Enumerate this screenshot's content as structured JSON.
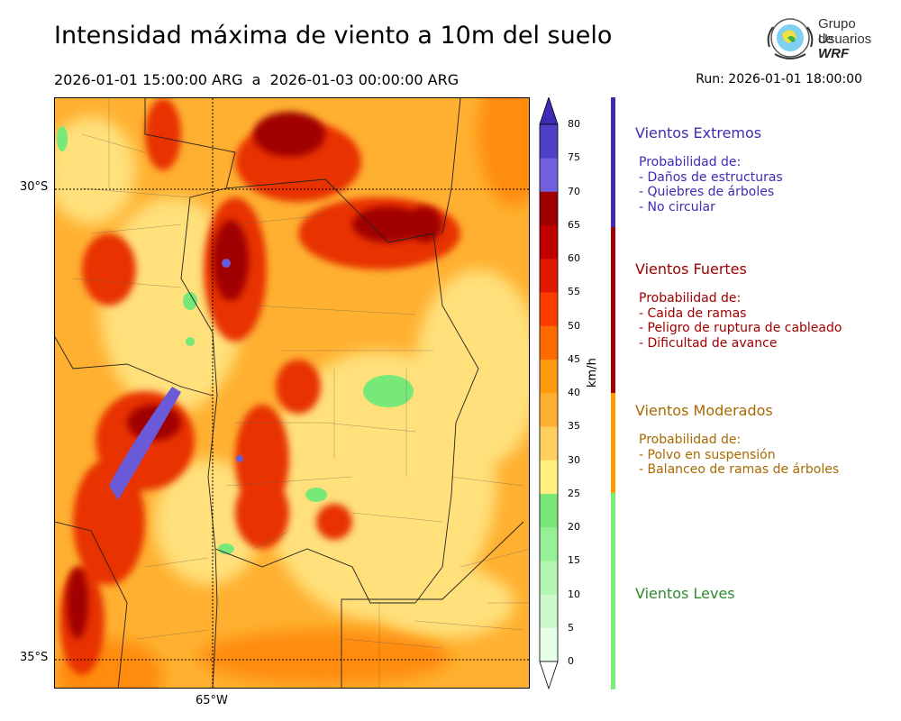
{
  "title": "Intensidad máxima de viento a 10m del suelo",
  "period": "2026-01-01 15:00:00 ARG  a  2026-01-03 00:00:00 ARG",
  "run": "Run: 2026-01-01 18:00:00",
  "logo": {
    "line1": "Grupo de",
    "line2": "Usuarios",
    "line3": "WRF"
  },
  "map": {
    "lat_labels": [
      "30°S",
      "35°S"
    ],
    "lon_labels": [
      "65°W"
    ]
  },
  "colorbar": {
    "unit": "km/h",
    "ticks": [
      "0",
      "5",
      "10",
      "15",
      "20",
      "25",
      "30",
      "35",
      "40",
      "45",
      "50",
      "55",
      "60",
      "65",
      "70",
      "75",
      "80"
    ],
    "colors": [
      "#e6ffe6",
      "#ccfacc",
      "#b3f5b3",
      "#96f096",
      "#78e878",
      "#fff080",
      "#ffd060",
      "#ffb030",
      "#ff9a10",
      "#ff6a00",
      "#ff3c00",
      "#e01800",
      "#c00000",
      "#a00000",
      "#7060dc",
      "#5040c8",
      "#3c2cb4"
    ],
    "extend_top_color": "#3c2cb4",
    "extend_bottom_color": "#ffffff"
  },
  "categories": [
    {
      "title": "Vientos Extremos",
      "color": "#3c2cb4",
      "lines": [
        "Probabilidad de:",
        "- Daños de estructuras",
        "- Quiebres de árboles",
        "- No circular"
      ]
    },
    {
      "title": "Vientos Fuertes",
      "color": "#a00000",
      "lines": [
        "Probabilidad de:",
        "- Caida de ramas",
        "- Peligro de ruptura de cableado",
        "- Dificultad de avance"
      ]
    },
    {
      "title": "Vientos Moderados",
      "color": "#a86a00",
      "lines": [
        "Probabilidad de:",
        "- Polvo en suspensión",
        "- Balanceo de ramas de árboles"
      ]
    },
    {
      "title": "Vientos Leves",
      "color": "#2e8b2e",
      "lines": []
    }
  ],
  "band_colors": [
    "#3c2cb4",
    "#a00000",
    "#ff9a00",
    "#78f078"
  ]
}
